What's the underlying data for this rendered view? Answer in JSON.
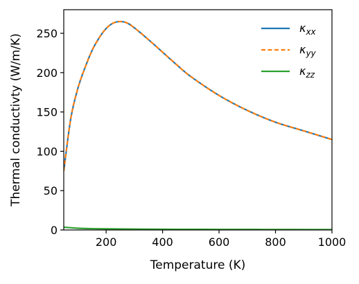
{
  "chart_data": {
    "type": "line",
    "title": "",
    "xlabel": "Temperature (K)",
    "ylabel": "Thermal conductivty (W/m/K)",
    "xlim": [
      50,
      1000
    ],
    "ylim": [
      0,
      280
    ],
    "xticks": [
      200,
      400,
      600,
      800,
      1000
    ],
    "yticks": [
      0,
      50,
      100,
      150,
      200,
      250
    ],
    "grid": false,
    "legend_position": "top-right",
    "series": [
      {
        "name": "κxx",
        "legend_main": "κ",
        "legend_sub": "xx",
        "color": "#1f77b4",
        "dash": "solid",
        "x": [
          50,
          75,
          100,
          125,
          150,
          175,
          200,
          225,
          250,
          275,
          300,
          350,
          400,
          450,
          500,
          600,
          700,
          800,
          900,
          1000
        ],
        "y": [
          75,
          142,
          180,
          206,
          228,
          244,
          256,
          263,
          265,
          263,
          257,
          242,
          226,
          210,
          195,
          171,
          152,
          137,
          126,
          115
        ]
      },
      {
        "name": "κyy",
        "legend_main": "κ",
        "legend_sub": "yy",
        "color": "#ff7f0e",
        "dash": "dashed",
        "x": [
          50,
          75,
          100,
          125,
          150,
          175,
          200,
          225,
          250,
          275,
          300,
          350,
          400,
          450,
          500,
          600,
          700,
          800,
          900,
          1000
        ],
        "y": [
          75,
          142,
          180,
          206,
          228,
          244,
          256,
          263,
          265,
          263,
          257,
          242,
          226,
          210,
          195,
          171,
          152,
          137,
          126,
          115
        ]
      },
      {
        "name": "κzz",
        "legend_main": "κ",
        "legend_sub": "zz",
        "color": "#2ca02c",
        "dash": "solid",
        "x": [
          50,
          100,
          150,
          200,
          300,
          400,
          500,
          600,
          800,
          1000
        ],
        "y": [
          3.5,
          2.2,
          1.7,
          1.4,
          1.1,
          0.9,
          0.8,
          0.7,
          0.6,
          0.5
        ]
      }
    ]
  }
}
